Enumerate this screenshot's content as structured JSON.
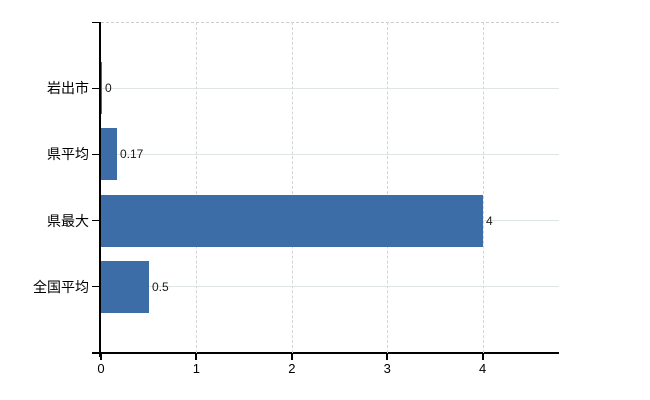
{
  "chart_data": {
    "type": "bar",
    "orientation": "horizontal",
    "title": "",
    "xlabel": "",
    "ylabel": "",
    "categories": [
      "岩出市",
      "県平均",
      "県最大",
      "全国平均"
    ],
    "values": [
      0,
      0.17,
      4,
      0.5
    ],
    "value_labels": [
      "0",
      "0.17",
      "4",
      "0.5"
    ],
    "x_ticks": [
      0,
      1,
      2,
      3,
      4
    ],
    "x_tick_labels": [
      "0",
      "1",
      "2",
      "3",
      "4"
    ],
    "xlim": [
      0,
      4.8
    ],
    "grid": {
      "vertical": "dashed",
      "horizontal": "solid",
      "top_border": "dashed"
    },
    "legend": "none",
    "colors": {
      "bar": "#3c6da7",
      "vertical_grid": "#d4d4d4",
      "horizontal_grid": "#dfe5df",
      "top_border": "#cccccc",
      "axis": "#000000",
      "value_label_text": "#1a1a1a",
      "tick_label_text": "#000000",
      "background": "#ffffff"
    }
  }
}
